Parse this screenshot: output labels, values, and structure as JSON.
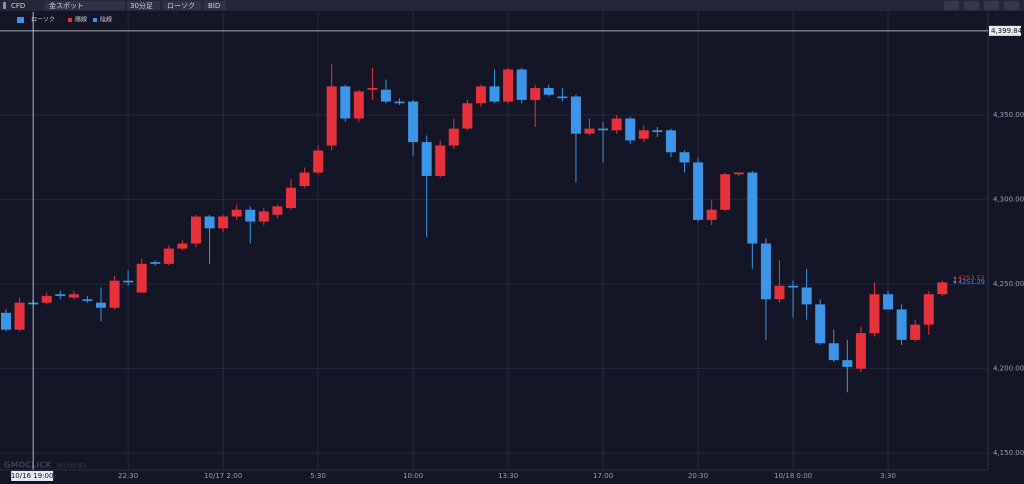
{
  "toolbar": [
    "CFD",
    "金スポット",
    "30分足",
    "ローソク",
    "BID"
  ],
  "watermark": {
    "brand": "GMOCLICK",
    "sub": "SECURITIES"
  },
  "chart_data": {
    "type": "candlestick",
    "series_name": "ローソク",
    "up": {
      "name": "陽線",
      "color": "#e5323c"
    },
    "down": {
      "name": "陰線",
      "color": "#3d95e8"
    },
    "categories": [
      null,
      null,
      "10/16 19:00",
      null,
      null,
      null,
      null,
      null,
      null,
      "22:30",
      null,
      null,
      null,
      null,
      null,
      null,
      "10/17 2:00",
      null,
      null,
      null,
      null,
      null,
      null,
      "5:30",
      null,
      null,
      null,
      null,
      null,
      null,
      "10:00",
      null,
      null,
      null,
      null,
      null,
      null,
      "13:30",
      null,
      null,
      null,
      null,
      null,
      null,
      "17:00",
      null,
      null,
      null,
      null,
      null,
      null,
      "20:30",
      null,
      null,
      null,
      null,
      null,
      null,
      "10/18 0:00",
      null,
      null,
      null,
      null,
      null,
      null,
      "3:30",
      null,
      null,
      null,
      null
    ],
    "open": [
      4233,
      4223,
      4239,
      4239,
      4244,
      4242,
      4241,
      4239,
      4236,
      4252,
      4245,
      4263,
      4262,
      4271,
      4274,
      4290,
      4283,
      4290,
      4294,
      4287,
      4291,
      4295,
      4308,
      4316,
      4332,
      4367,
      4348,
      4365,
      4365,
      4358,
      4358,
      4334,
      4314,
      4332,
      4342,
      4357,
      4367,
      4358,
      4377,
      4359,
      4366,
      4361,
      4361,
      4339,
      4342,
      4341,
      4348,
      4336,
      4341,
      4341,
      4328,
      4322,
      4288,
      4294,
      4315,
      4316,
      4274,
      4241,
      4249,
      4248,
      4238,
      4215,
      4205,
      4200,
      4221,
      4244,
      4235,
      4217,
      4226,
      4244
    ],
    "high": [
      4235,
      4242,
      4241,
      4245,
      4246,
      4246,
      4243,
      4248,
      4255,
      4258,
      4265,
      4264,
      4273,
      4276,
      4291,
      4291,
      4291,
      4297,
      4296,
      4295,
      4297,
      4312,
      4319,
      4332,
      4380,
      4368,
      4365,
      4378,
      4371,
      4360,
      4359,
      4338,
      4335,
      4348,
      4359,
      4368,
      4377,
      4378,
      4378,
      4368,
      4368,
      4366,
      4362,
      4348,
      4346,
      4350,
      4349,
      4344,
      4343,
      4342,
      4329,
      4325,
      4300,
      4316,
      4316,
      4317,
      4277,
      4264,
      4252,
      4259,
      4241,
      4223,
      4217,
      4225,
      4251,
      4246,
      4238,
      4229,
      4246,
      4252
    ],
    "low": [
      4222,
      4222,
      4238,
      4238,
      4241,
      4241,
      4239,
      4228,
      4235,
      4249,
      4245,
      4261,
      4261,
      4270,
      4272,
      4262,
      4281,
      4288,
      4274,
      4285,
      4289,
      4294,
      4307,
      4315,
      4329,
      4346,
      4346,
      4359,
      4357,
      4356,
      4326,
      4278,
      4313,
      4330,
      4341,
      4355,
      4357,
      4357,
      4357,
      4343,
      4361,
      4358,
      4310,
      4338,
      4322,
      4339,
      4333,
      4334,
      4337,
      4325,
      4316,
      4287,
      4285,
      4293,
      4314,
      4259,
      4217,
      4239,
      4230,
      4229,
      4214,
      4204,
      4186,
      4198,
      4219,
      4235,
      4214,
      4216,
      4220,
      4243
    ],
    "close": [
      4223,
      4239,
      4238,
      4243,
      4243,
      4244,
      4240,
      4236,
      4252,
      4251,
      4262,
      4262,
      4271,
      4274,
      4290,
      4283,
      4290,
      4294,
      4287,
      4293,
      4296,
      4307,
      4316,
      4329,
      4367,
      4348,
      4364,
      4366,
      4358,
      4357,
      4334,
      4314,
      4332,
      4342,
      4357,
      4367,
      4358,
      4377,
      4359,
      4366,
      4362,
      4360,
      4339,
      4342,
      4341,
      4348,
      4335,
      4341,
      4340,
      4328,
      4322,
      4288,
      4294,
      4315,
      4316,
      4274,
      4241,
      4249,
      4248,
      4238,
      4215,
      4205,
      4201,
      4221,
      4244,
      4235,
      4217,
      4226,
      4244,
      4251
    ],
    "ylim": [
      4140,
      4411
    ],
    "yticks": [
      {
        "value": 4150,
        "label": "4,150.00"
      },
      {
        "value": 4200,
        "label": "4,200.00"
      },
      {
        "value": 4250,
        "label": "4,250.00"
      },
      {
        "value": 4300,
        "label": "4,300.00"
      },
      {
        "value": 4350,
        "label": "4,350.00"
      }
    ],
    "grid": true,
    "crosshair": {
      "x": "10/16 19:00",
      "y": {
        "value": 4399.84,
        "label": "4,399.84"
      }
    },
    "price_markers": [
      {
        "value": 4253.52,
        "color": "#e5323c"
      },
      {
        "value": 4251.29,
        "color": "#3d95e8"
      }
    ]
  }
}
